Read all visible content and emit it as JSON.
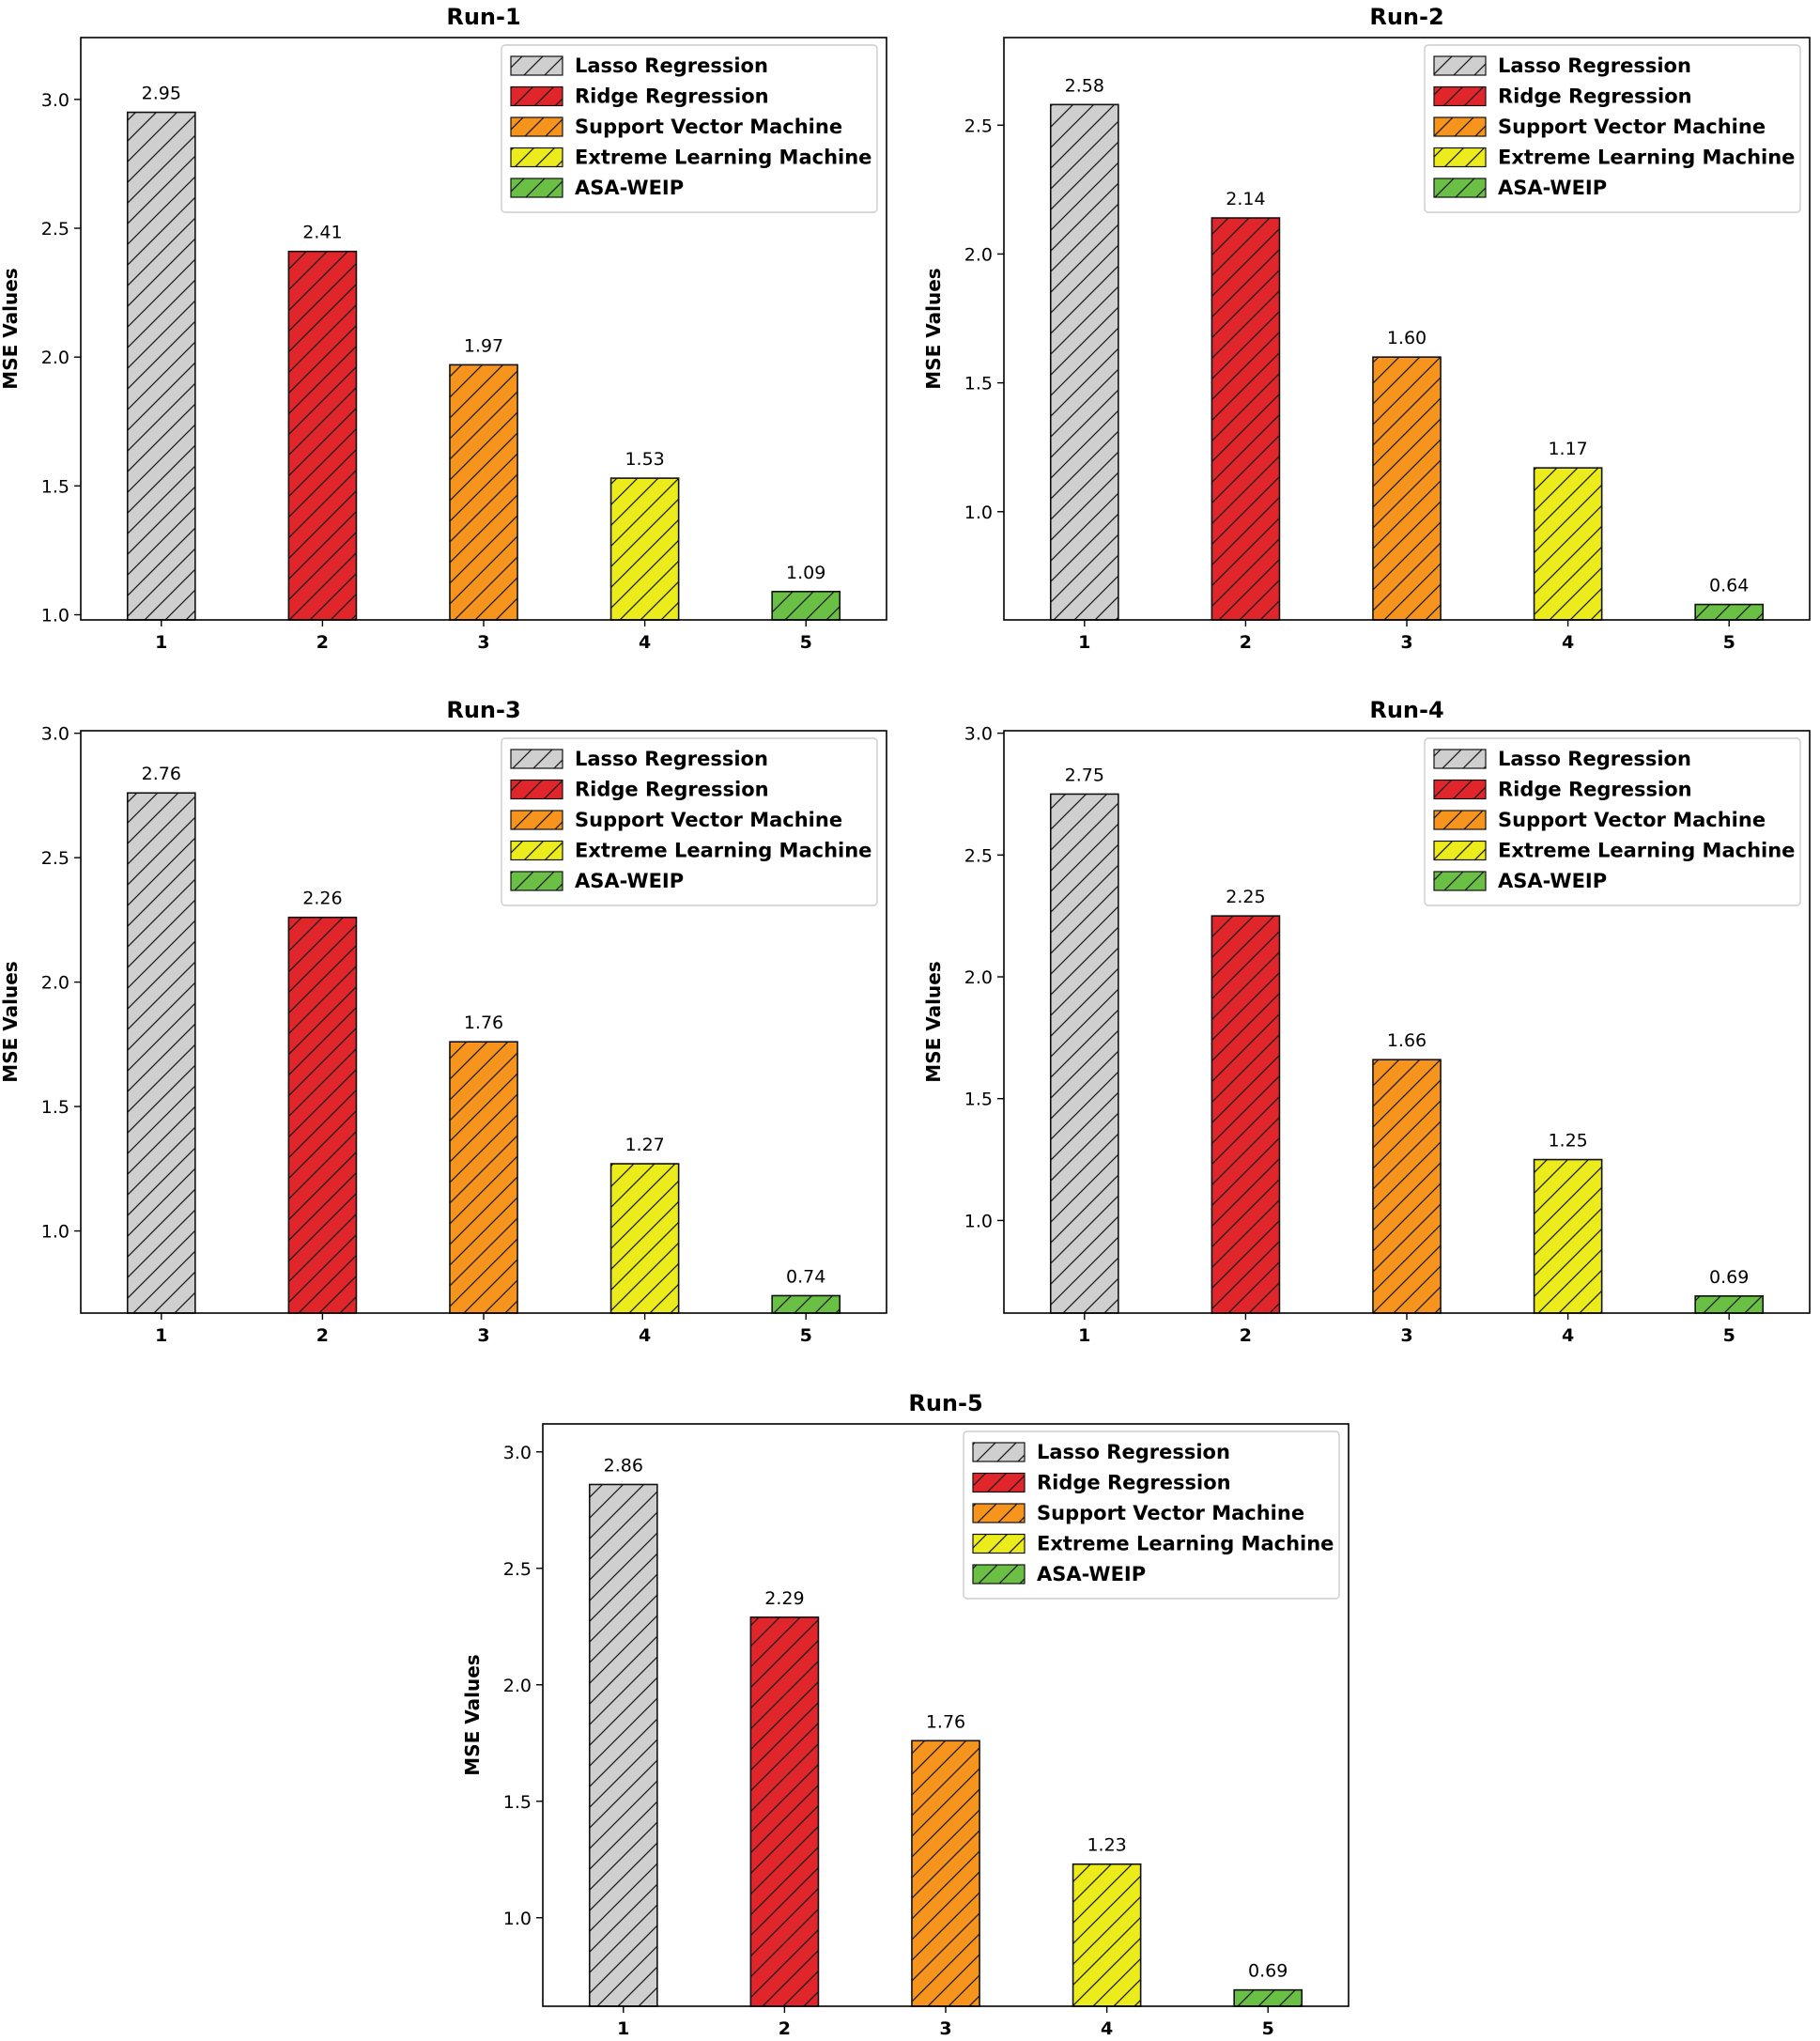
{
  "figure_title": "",
  "colors": {
    "Lasso Regression": "#cfcfcf",
    "Ridge Regression": "#e0262b",
    "Support Vector Machine": "#f7941d",
    "Extreme Learning Machine": "#ecec1c",
    "ASA-WEIP": "#6abf45"
  },
  "hatch": "diagonal-lines",
  "chart_data": [
    {
      "type": "bar",
      "title": "Run-1",
      "xlabel": "",
      "ylabel": "MSE Values",
      "categories": [
        "1",
        "2",
        "3",
        "4",
        "5"
      ],
      "series_labels": [
        "Lasso Regression",
        "Ridge Regression",
        "Support Vector Machine",
        "Extreme Learning Machine",
        "ASA-WEIP"
      ],
      "values": [
        2.95,
        2.41,
        1.97,
        1.53,
        1.09
      ],
      "data_labels": [
        "2.95",
        "2.41",
        "1.97",
        "1.53",
        "1.09"
      ],
      "ylim": [
        0.98,
        3.24
      ],
      "yticks": [
        "1.0",
        "1.5",
        "2.0",
        "2.5",
        "3.0"
      ],
      "legend": "top-right",
      "grid": false
    },
    {
      "type": "bar",
      "title": "Run-2",
      "xlabel": "",
      "ylabel": "MSE Values",
      "categories": [
        "1",
        "2",
        "3",
        "4",
        "5"
      ],
      "series_labels": [
        "Lasso Regression",
        "Ridge Regression",
        "Support Vector Machine",
        "Extreme Learning Machine",
        "ASA-WEIP"
      ],
      "values": [
        2.58,
        2.14,
        1.6,
        1.17,
        0.64
      ],
      "data_labels": [
        "2.58",
        "2.14",
        "1.60",
        "1.17",
        "0.64"
      ],
      "ylim": [
        0.58,
        2.84
      ],
      "yticks": [
        "1.0",
        "1.5",
        "2.0",
        "2.5"
      ],
      "legend": "top-right",
      "grid": false
    },
    {
      "type": "bar",
      "title": "Run-3",
      "xlabel": "",
      "ylabel": "MSE Values",
      "categories": [
        "1",
        "2",
        "3",
        "4",
        "5"
      ],
      "series_labels": [
        "Lasso Regression",
        "Ridge Regression",
        "Support Vector Machine",
        "Extreme Learning Machine",
        "ASA-WEIP"
      ],
      "values": [
        2.76,
        2.26,
        1.76,
        1.27,
        0.74
      ],
      "data_labels": [
        "2.76",
        "2.26",
        "1.76",
        "1.27",
        "0.74"
      ],
      "ylim": [
        0.67,
        3.01
      ],
      "yticks": [
        "1.0",
        "1.5",
        "2.0",
        "2.5",
        "3.0"
      ],
      "legend": "top-right",
      "grid": false
    },
    {
      "type": "bar",
      "title": "Run-4",
      "xlabel": "",
      "ylabel": "MSE Values",
      "categories": [
        "1",
        "2",
        "3",
        "4",
        "5"
      ],
      "series_labels": [
        "Lasso Regression",
        "Ridge Regression",
        "Support Vector Machine",
        "Extreme Learning Machine",
        "ASA-WEIP"
      ],
      "values": [
        2.75,
        2.25,
        1.66,
        1.25,
        0.69
      ],
      "data_labels": [
        "2.75",
        "2.25",
        "1.66",
        "1.25",
        "0.69"
      ],
      "ylim": [
        0.62,
        3.01
      ],
      "yticks": [
        "1.0",
        "1.5",
        "2.0",
        "2.5",
        "3.0"
      ],
      "legend": "top-right",
      "grid": false
    },
    {
      "type": "bar",
      "title": "Run-5",
      "xlabel": "",
      "ylabel": "MSE Values",
      "categories": [
        "1",
        "2",
        "3",
        "4",
        "5"
      ],
      "series_labels": [
        "Lasso Regression",
        "Ridge Regression",
        "Support Vector Machine",
        "Extreme Learning Machine",
        "ASA-WEIP"
      ],
      "values": [
        2.86,
        2.29,
        1.76,
        1.23,
        0.69
      ],
      "data_labels": [
        "2.86",
        "2.29",
        "1.76",
        "1.23",
        "0.69"
      ],
      "ylim": [
        0.62,
        3.12
      ],
      "yticks": [
        "1.0",
        "1.5",
        "2.0",
        "2.5",
        "3.0"
      ],
      "legend": "top-right",
      "grid": false
    }
  ]
}
